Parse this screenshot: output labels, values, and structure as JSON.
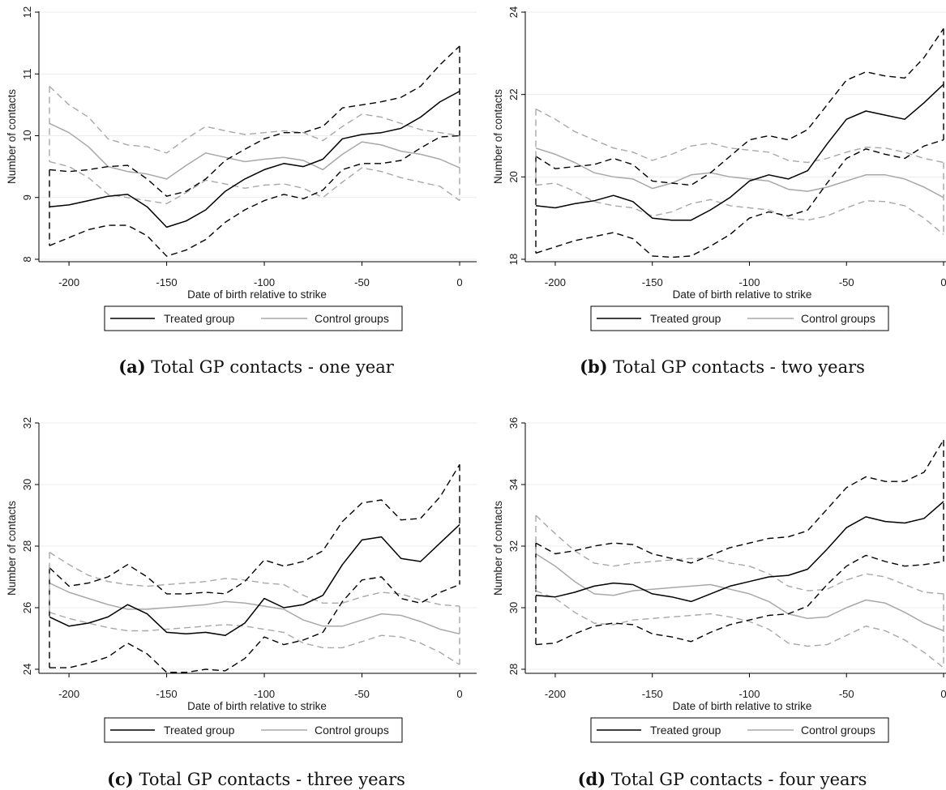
{
  "chart_data": [
    {
      "type": "line",
      "caption_letter": "(a)",
      "caption_text": "Total GP contacts - one year",
      "xlabel": "Date of birth relative to strike",
      "ylabel": "Number of contacts",
      "xlim": [
        -210,
        0
      ],
      "ylim": [
        8,
        12
      ],
      "xticks": [
        -200,
        -150,
        -100,
        -50,
        0
      ],
      "yticks": [
        8,
        9,
        10,
        11,
        12
      ],
      "grid": true,
      "legend": "bottom",
      "legend_entries": [
        "Treated group",
        "Control groups"
      ],
      "x": [
        -210,
        -200,
        -190,
        -180,
        -170,
        -160,
        -150,
        -140,
        -130,
        -120,
        -110,
        -100,
        -90,
        -80,
        -70,
        -60,
        -50,
        -40,
        -30,
        -20,
        -10,
        0
      ],
      "series": [
        {
          "name": "Treated group",
          "role": "estimate",
          "color": "#000000",
          "dash": false,
          "values": [
            8.85,
            8.88,
            8.95,
            9.02,
            9.05,
            8.85,
            8.52,
            8.62,
            8.8,
            9.1,
            9.3,
            9.45,
            9.55,
            9.5,
            9.62,
            9.95,
            10.02,
            10.05,
            10.12,
            10.3,
            10.55,
            10.72
          ]
        },
        {
          "role": "upper_ci",
          "color": "#000000",
          "dash": true,
          "values": [
            9.45,
            9.42,
            9.45,
            9.5,
            9.52,
            9.3,
            9.02,
            9.1,
            9.3,
            9.6,
            9.78,
            9.95,
            10.05,
            10.05,
            10.15,
            10.45,
            10.5,
            10.55,
            10.62,
            10.8,
            11.15,
            11.45
          ]
        },
        {
          "role": "lower_ci",
          "color": "#000000",
          "dash": true,
          "values": [
            8.22,
            8.35,
            8.48,
            8.55,
            8.55,
            8.38,
            8.05,
            8.15,
            8.32,
            8.6,
            8.8,
            8.95,
            9.05,
            8.98,
            9.12,
            9.45,
            9.55,
            9.55,
            9.6,
            9.8,
            9.98,
            10.0
          ]
        },
        {
          "name": "Control groups",
          "role": "estimate",
          "color": "#a8a8a8",
          "dash": false,
          "values": [
            10.2,
            10.05,
            9.82,
            9.5,
            9.42,
            9.38,
            9.3,
            9.52,
            9.72,
            9.65,
            9.58,
            9.62,
            9.65,
            9.6,
            9.45,
            9.7,
            9.9,
            9.85,
            9.75,
            9.7,
            9.62,
            9.48
          ]
        },
        {
          "role": "upper_ci",
          "color": "#a8a8a8",
          "dash": true,
          "values": [
            10.8,
            10.5,
            10.3,
            9.95,
            9.85,
            9.82,
            9.72,
            9.95,
            10.15,
            10.08,
            10.02,
            10.05,
            10.08,
            10.05,
            9.92,
            10.15,
            10.35,
            10.3,
            10.2,
            10.1,
            10.05,
            10.0
          ]
        },
        {
          "role": "lower_ci",
          "color": "#a8a8a8",
          "dash": true,
          "values": [
            9.58,
            9.5,
            9.32,
            9.05,
            9.0,
            8.95,
            8.9,
            9.08,
            9.28,
            9.22,
            9.15,
            9.2,
            9.22,
            9.15,
            9.0,
            9.25,
            9.48,
            9.42,
            9.32,
            9.25,
            9.18,
            8.95
          ]
        }
      ]
    },
    {
      "type": "line",
      "caption_letter": "(b)",
      "caption_text": "Total GP contacts - two years",
      "xlabel": "Date of birth relative to strike",
      "ylabel": "Number of contacts",
      "xlim": [
        -210,
        0
      ],
      "ylim": [
        18,
        24
      ],
      "xticks": [
        -200,
        -150,
        -100,
        -50,
        0
      ],
      "yticks": [
        18,
        20,
        22,
        24
      ],
      "grid": true,
      "legend": "bottom",
      "legend_entries": [
        "Treated group",
        "Control groups"
      ],
      "x": [
        -210,
        -200,
        -190,
        -180,
        -170,
        -160,
        -150,
        -140,
        -130,
        -120,
        -110,
        -100,
        -90,
        -80,
        -70,
        -60,
        -50,
        -40,
        -30,
        -20,
        -10,
        0
      ],
      "series": [
        {
          "name": "Treated group",
          "role": "estimate",
          "color": "#000000",
          "dash": false,
          "values": [
            19.3,
            19.25,
            19.35,
            19.42,
            19.55,
            19.4,
            19.0,
            18.95,
            18.95,
            19.2,
            19.5,
            19.9,
            20.05,
            19.95,
            20.15,
            20.8,
            21.4,
            21.6,
            21.5,
            21.4,
            21.8,
            22.25
          ]
        },
        {
          "role": "upper_ci",
          "color": "#000000",
          "dash": true,
          "values": [
            20.5,
            20.2,
            20.25,
            20.3,
            20.45,
            20.3,
            19.9,
            19.85,
            19.8,
            20.1,
            20.5,
            20.9,
            21.0,
            20.9,
            21.15,
            21.75,
            22.35,
            22.55,
            22.45,
            22.4,
            22.9,
            23.6
          ]
        },
        {
          "role": "lower_ci",
          "color": "#000000",
          "dash": true,
          "values": [
            18.15,
            18.3,
            18.45,
            18.55,
            18.65,
            18.5,
            18.08,
            18.05,
            18.08,
            18.32,
            18.6,
            19.0,
            19.15,
            19.05,
            19.2,
            19.85,
            20.45,
            20.68,
            20.55,
            20.45,
            20.75,
            20.9
          ]
        },
        {
          "name": "Control groups",
          "role": "estimate",
          "color": "#a8a8a8",
          "dash": false,
          "values": [
            20.7,
            20.55,
            20.35,
            20.1,
            20.0,
            19.95,
            19.72,
            19.85,
            20.05,
            20.1,
            20.0,
            19.95,
            19.9,
            19.7,
            19.65,
            19.75,
            19.9,
            20.05,
            20.05,
            19.95,
            19.75,
            19.5
          ]
        },
        {
          "role": "upper_ci",
          "color": "#a8a8a8",
          "dash": true,
          "values": [
            21.65,
            21.4,
            21.1,
            20.9,
            20.7,
            20.6,
            20.4,
            20.55,
            20.75,
            20.82,
            20.7,
            20.65,
            20.6,
            20.4,
            20.35,
            20.45,
            20.6,
            20.72,
            20.7,
            20.6,
            20.45,
            20.35
          ]
        },
        {
          "role": "lower_ci",
          "color": "#a8a8a8",
          "dash": true,
          "values": [
            19.8,
            19.85,
            19.65,
            19.4,
            19.3,
            19.25,
            19.05,
            19.15,
            19.35,
            19.45,
            19.3,
            19.25,
            19.2,
            19.0,
            18.95,
            19.05,
            19.25,
            19.42,
            19.4,
            19.3,
            19.0,
            18.6
          ]
        }
      ]
    },
    {
      "type": "line",
      "caption_letter": "(c)",
      "caption_text": "Total GP contacts - three years",
      "xlabel": "Date of birth relative to strike",
      "ylabel": "Number of contacts",
      "xlim": [
        -210,
        0
      ],
      "ylim": [
        24,
        32
      ],
      "xticks": [
        -200,
        -150,
        -100,
        -50,
        0
      ],
      "yticks": [
        24,
        26,
        28,
        30,
        32
      ],
      "grid": true,
      "legend": "bottom",
      "legend_entries": [
        "Treated group",
        "Control groups"
      ],
      "x": [
        -210,
        -200,
        -190,
        -180,
        -170,
        -160,
        -150,
        -140,
        -130,
        -120,
        -110,
        -100,
        -90,
        -80,
        -70,
        -60,
        -50,
        -40,
        -30,
        -20,
        -10,
        0
      ],
      "series": [
        {
          "name": "Treated group",
          "role": "estimate",
          "color": "#000000",
          "dash": false,
          "values": [
            25.7,
            25.4,
            25.5,
            25.7,
            26.1,
            25.8,
            25.2,
            25.15,
            25.2,
            25.1,
            25.5,
            26.3,
            26.0,
            26.1,
            26.4,
            27.4,
            28.2,
            28.3,
            27.6,
            27.5,
            28.1,
            28.7
          ]
        },
        {
          "role": "upper_ci",
          "color": "#000000",
          "dash": true,
          "values": [
            27.3,
            26.7,
            26.8,
            27.0,
            27.4,
            27.0,
            26.45,
            26.45,
            26.5,
            26.45,
            26.85,
            27.55,
            27.35,
            27.5,
            27.85,
            28.8,
            29.4,
            29.5,
            28.85,
            28.9,
            29.6,
            30.65
          ]
        },
        {
          "role": "lower_ci",
          "color": "#000000",
          "dash": true,
          "values": [
            24.05,
            24.05,
            24.2,
            24.4,
            24.85,
            24.5,
            23.9,
            23.9,
            24.0,
            23.95,
            24.35,
            25.05,
            24.8,
            24.95,
            25.2,
            26.2,
            26.9,
            27.0,
            26.3,
            26.15,
            26.5,
            26.75
          ]
        },
        {
          "name": "Control groups",
          "role": "estimate",
          "color": "#a8a8a8",
          "dash": false,
          "values": [
            26.8,
            26.5,
            26.3,
            26.1,
            25.95,
            25.95,
            26.0,
            26.05,
            26.1,
            26.2,
            26.15,
            26.05,
            25.95,
            25.6,
            25.4,
            25.4,
            25.6,
            25.8,
            25.75,
            25.55,
            25.3,
            25.15
          ]
        },
        {
          "role": "upper_ci",
          "color": "#a8a8a8",
          "dash": true,
          "values": [
            27.8,
            27.4,
            27.05,
            26.85,
            26.75,
            26.7,
            26.75,
            26.8,
            26.85,
            26.95,
            26.9,
            26.8,
            26.75,
            26.4,
            26.15,
            26.15,
            26.35,
            26.5,
            26.45,
            26.25,
            26.1,
            26.05
          ]
        },
        {
          "role": "lower_ci",
          "color": "#a8a8a8",
          "dash": true,
          "values": [
            25.85,
            25.65,
            25.5,
            25.35,
            25.25,
            25.25,
            25.3,
            25.35,
            25.4,
            25.45,
            25.4,
            25.3,
            25.2,
            24.85,
            24.7,
            24.7,
            24.9,
            25.1,
            25.05,
            24.85,
            24.55,
            24.15
          ]
        }
      ]
    },
    {
      "type": "line",
      "caption_letter": "(d)",
      "caption_text": "Total GP contacts - four years",
      "xlabel": "Date of birth relative to strike",
      "ylabel": "Number of contacts",
      "xlim": [
        -210,
        0
      ],
      "ylim": [
        28,
        36
      ],
      "xticks": [
        -200,
        -150,
        -100,
        -50,
        0
      ],
      "yticks": [
        28,
        30,
        32,
        34,
        36
      ],
      "grid": true,
      "legend": "bottom",
      "legend_entries": [
        "Treated group",
        "Control groups"
      ],
      "x": [
        -210,
        -200,
        -190,
        -180,
        -170,
        -160,
        -150,
        -140,
        -130,
        -120,
        -110,
        -100,
        -90,
        -80,
        -70,
        -60,
        -50,
        -40,
        -30,
        -20,
        -10,
        0
      ],
      "series": [
        {
          "name": "Treated group",
          "role": "estimate",
          "color": "#000000",
          "dash": false,
          "values": [
            30.4,
            30.35,
            30.5,
            30.7,
            30.8,
            30.75,
            30.45,
            30.35,
            30.2,
            30.45,
            30.7,
            30.85,
            31.0,
            31.05,
            31.25,
            31.9,
            32.6,
            32.95,
            32.8,
            32.75,
            32.9,
            33.45
          ]
        },
        {
          "role": "upper_ci",
          "color": "#000000",
          "dash": true,
          "values": [
            32.1,
            31.75,
            31.85,
            32.0,
            32.1,
            32.05,
            31.75,
            31.6,
            31.45,
            31.7,
            31.95,
            32.1,
            32.25,
            32.3,
            32.5,
            33.2,
            33.9,
            34.25,
            34.1,
            34.1,
            34.4,
            35.45
          ]
        },
        {
          "role": "lower_ci",
          "color": "#000000",
          "dash": true,
          "values": [
            28.8,
            28.85,
            29.15,
            29.4,
            29.5,
            29.45,
            29.15,
            29.05,
            28.9,
            29.2,
            29.45,
            29.6,
            29.75,
            29.8,
            30.05,
            30.75,
            31.35,
            31.7,
            31.5,
            31.35,
            31.4,
            31.5
          ]
        },
        {
          "name": "Control groups",
          "role": "estimate",
          "color": "#a8a8a8",
          "dash": false,
          "values": [
            31.75,
            31.35,
            30.85,
            30.45,
            30.4,
            30.55,
            30.6,
            30.65,
            30.7,
            30.75,
            30.6,
            30.45,
            30.2,
            29.8,
            29.65,
            29.7,
            30.0,
            30.25,
            30.15,
            29.85,
            29.5,
            29.25
          ]
        },
        {
          "role": "upper_ci",
          "color": "#a8a8a8",
          "dash": true,
          "values": [
            33.0,
            32.4,
            31.85,
            31.45,
            31.35,
            31.45,
            31.5,
            31.55,
            31.6,
            31.6,
            31.45,
            31.35,
            31.1,
            30.7,
            30.55,
            30.6,
            30.9,
            31.1,
            31.0,
            30.75,
            30.5,
            30.45
          ]
        },
        {
          "role": "lower_ci",
          "color": "#a8a8a8",
          "dash": true,
          "values": [
            30.55,
            30.3,
            29.85,
            29.5,
            29.45,
            29.6,
            29.65,
            29.7,
            29.75,
            29.8,
            29.7,
            29.55,
            29.3,
            28.85,
            28.75,
            28.8,
            29.1,
            29.4,
            29.25,
            28.95,
            28.55,
            28.05
          ]
        }
      ]
    }
  ]
}
